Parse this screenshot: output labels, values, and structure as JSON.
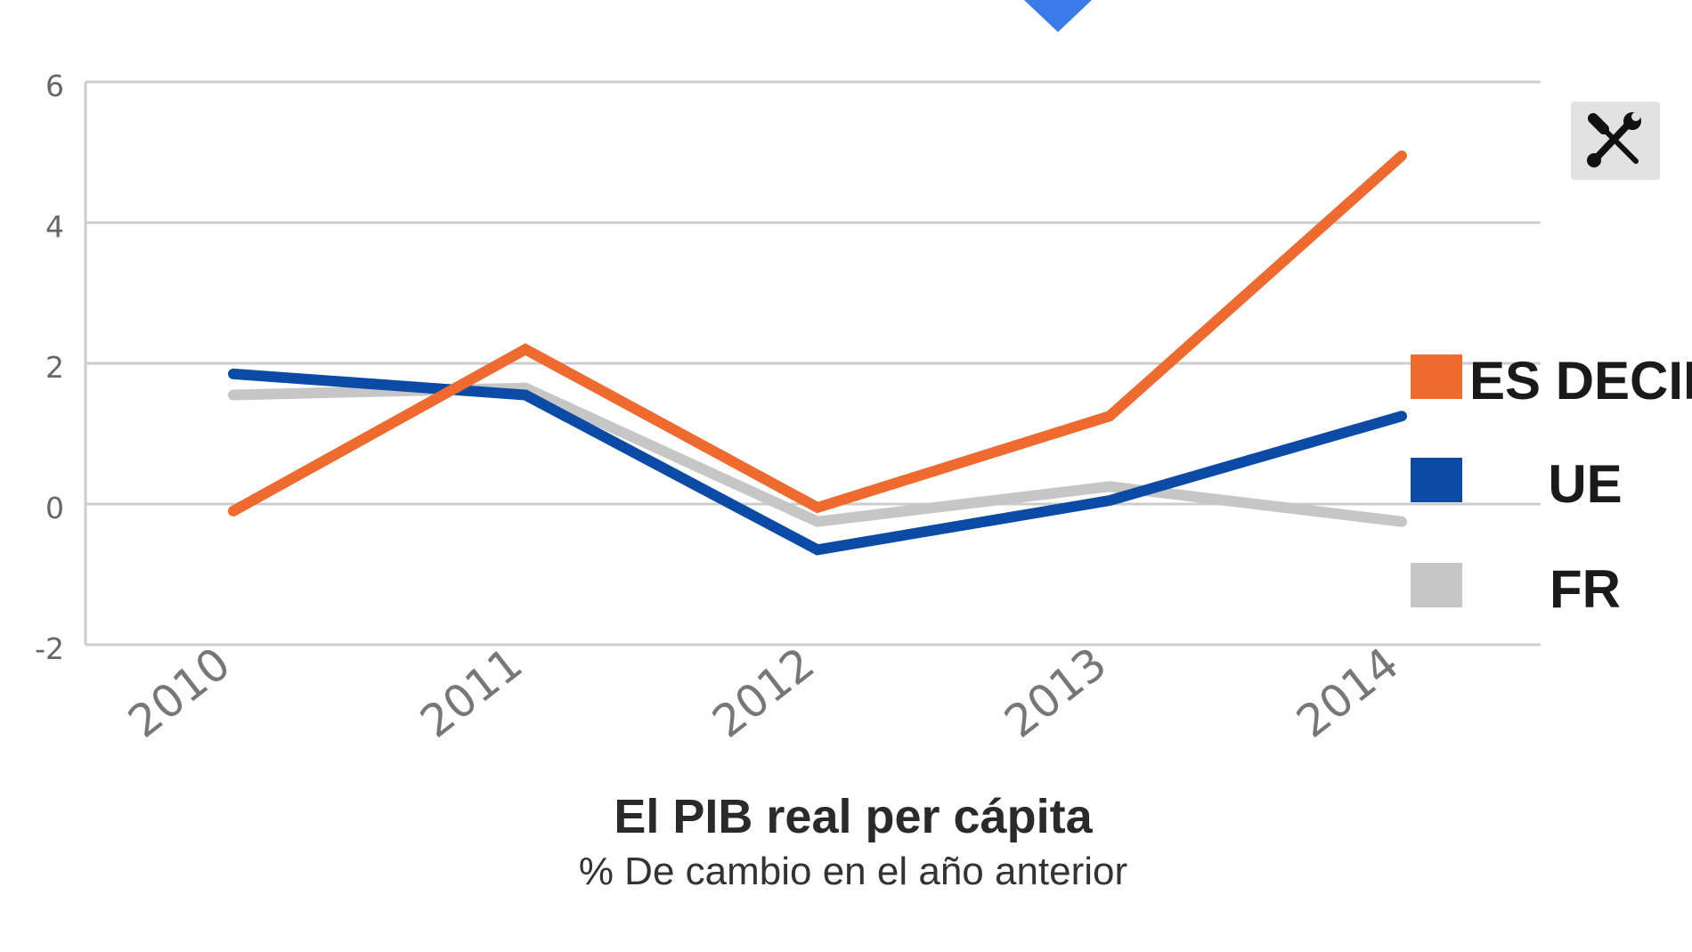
{
  "colors": {
    "accent_marker": "#3b7be8",
    "grid": "#cccccc",
    "tick_text": "#666666",
    "tools_bg": "#e2e2e2"
  },
  "toolbar": {
    "tools_icon": "wrench-screwdriver-icon"
  },
  "chart_data": {
    "type": "line",
    "x": [
      "2010",
      "2011",
      "2012",
      "2013",
      "2014"
    ],
    "title": "El PIB real per cápita",
    "subtitle": "% De cambio en el año anterior",
    "ylim": [
      -2,
      6
    ],
    "yticks": [
      "6",
      "4",
      "2",
      "0",
      "-2"
    ],
    "grid": true,
    "legend_position": "right",
    "series": [
      {
        "name": "ES DECIR",
        "color": "#ee6a2f",
        "values": [
          -0.1,
          2.2,
          -0.05,
          1.25,
          4.95
        ]
      },
      {
        "name": "UE",
        "color": "#0b4aa5",
        "values": [
          1.85,
          1.55,
          -0.65,
          0.05,
          1.25
        ]
      },
      {
        "name": "FR",
        "color": "#c6c6c6",
        "values": [
          1.55,
          1.65,
          -0.25,
          0.25,
          -0.25
        ]
      }
    ]
  }
}
